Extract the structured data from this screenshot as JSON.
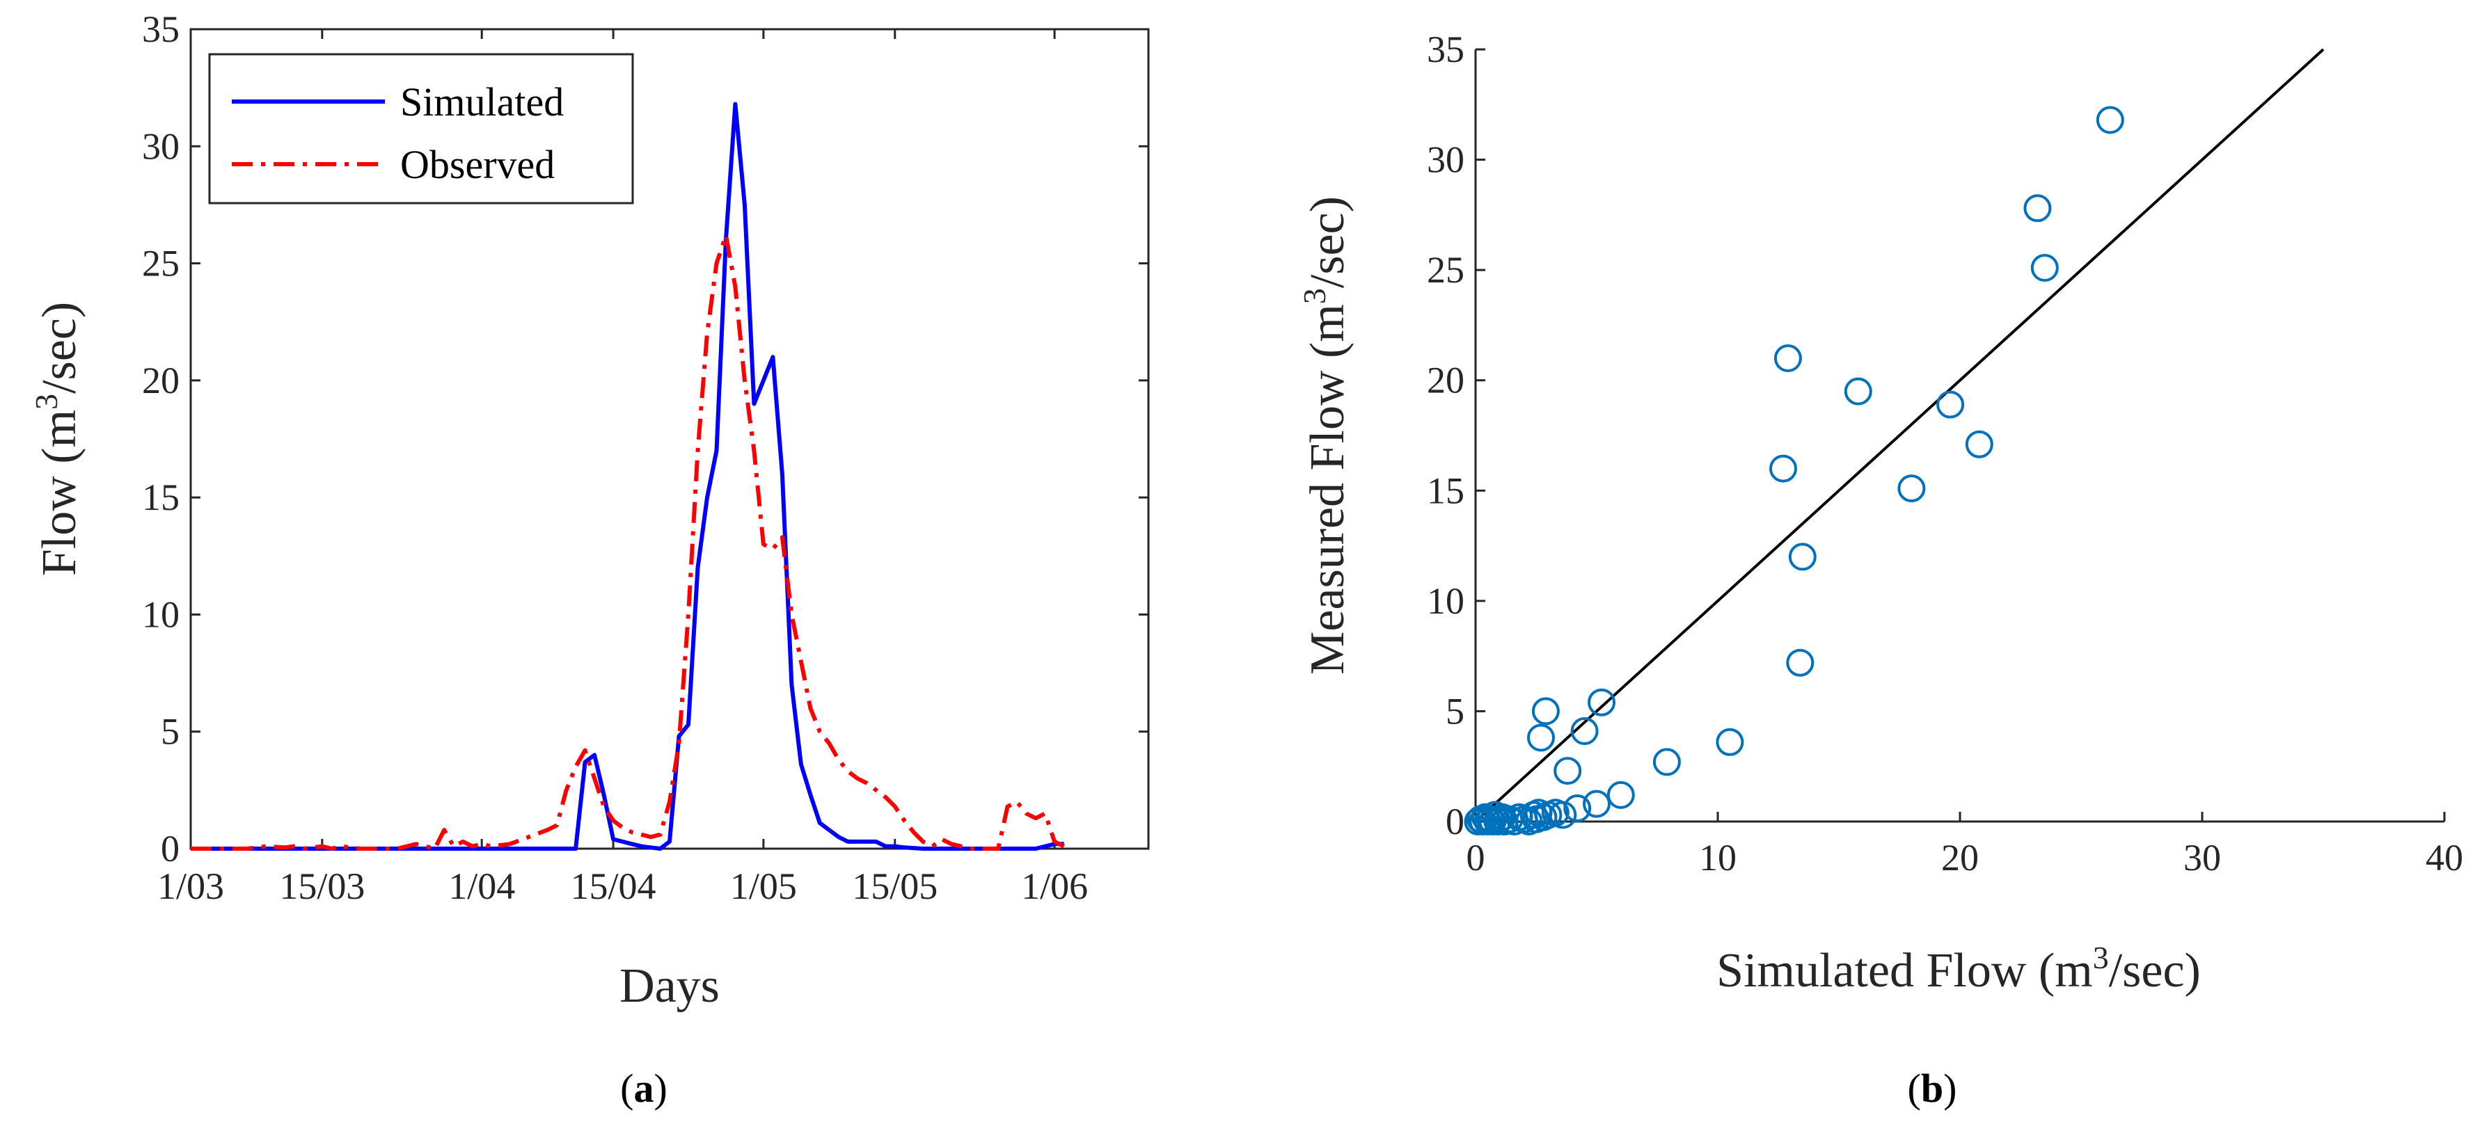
{
  "chart_data": [
    {
      "type": "line",
      "panel": "a",
      "caption_letter": "a",
      "xlabel": "Days",
      "ylabel_pre": "Flow (m",
      "ylabel_sup": "3",
      "ylabel_post": "/sec)",
      "x_unit": "day index from 1 March",
      "xlim": [
        0,
        102
      ],
      "ylim": [
        0,
        35
      ],
      "x_ticks": [
        {
          "value": 0,
          "label": "1/03"
        },
        {
          "value": 14,
          "label": "15/03"
        },
        {
          "value": 31,
          "label": "1/04"
        },
        {
          "value": 45,
          "label": "15/04"
        },
        {
          "value": 61,
          "label": "1/05"
        },
        {
          "value": 75,
          "label": "15/05"
        },
        {
          "value": 92,
          "label": "1/06"
        }
      ],
      "y_ticks": [
        0,
        5,
        10,
        15,
        20,
        25,
        30,
        35
      ],
      "legend": "top-left",
      "series": [
        {
          "name": "Simulated",
          "color": "#0000ff",
          "style": "solid",
          "x": [
            0,
            10,
            20,
            30,
            40,
            41,
            42,
            43,
            44,
            45,
            46,
            47,
            48,
            49,
            50,
            51,
            52,
            53,
            54,
            55,
            56,
            57,
            58,
            59,
            60,
            61,
            62,
            63,
            64,
            65,
            66,
            67,
            68,
            69,
            70,
            71,
            72,
            73,
            74,
            75,
            76,
            78,
            80,
            82,
            84,
            86,
            88,
            90,
            92,
            93
          ],
          "values": [
            0,
            0,
            0,
            0,
            0,
            0,
            3.7,
            4.0,
            2.3,
            0.4,
            0.3,
            0.2,
            0.1,
            0.05,
            0,
            0.3,
            4.8,
            5.3,
            12,
            15,
            17,
            26,
            31.8,
            27.5,
            19,
            20,
            21,
            16,
            7,
            3.6,
            2.3,
            1.1,
            0.8,
            0.5,
            0.3,
            0.3,
            0.3,
            0.3,
            0.1,
            0.1,
            0.05,
            0,
            0,
            0,
            0,
            0,
            0,
            0,
            0.2,
            0.2
          ]
        },
        {
          "name": "Observed",
          "color": "#ff0000",
          "style": "dash-dot",
          "x": [
            0,
            2,
            4,
            6,
            8,
            10,
            11,
            12,
            14,
            15,
            16,
            18,
            20,
            22,
            24,
            26,
            27,
            28,
            29,
            30,
            31,
            32,
            34,
            36,
            38,
            39,
            40,
            41,
            42,
            43,
            44,
            45,
            46,
            47,
            48,
            49,
            50,
            51,
            52,
            53,
            54,
            55,
            56,
            57,
            58,
            59,
            60,
            61,
            62,
            63,
            64,
            65,
            66,
            67,
            68,
            69,
            70,
            71,
            72,
            73,
            74,
            75,
            76,
            77,
            78,
            79,
            80,
            81,
            82,
            83,
            84,
            85,
            86,
            87,
            88,
            89,
            90,
            91,
            92,
            93
          ],
          "values": [
            0,
            0,
            0,
            0,
            0.1,
            0.05,
            0.1,
            0,
            0.1,
            0,
            0.1,
            0,
            0,
            0,
            0.2,
            0,
            0.8,
            0.1,
            0.3,
            0.1,
            0.2,
            0.1,
            0.2,
            0.5,
            0.8,
            1.0,
            2.5,
            3.5,
            4.2,
            3.0,
            1.8,
            1.2,
            0.9,
            0.7,
            0.6,
            0.5,
            0.6,
            2.0,
            4.5,
            10,
            17,
            22,
            25,
            26.2,
            24,
            20,
            17,
            13,
            12.8,
            13.3,
            10,
            8,
            6,
            5,
            4.5,
            3.8,
            3.3,
            3,
            2.8,
            2.5,
            2.2,
            1.8,
            1.2,
            0.7,
            0.3,
            0.1,
            0.4,
            0.2,
            0.1,
            0,
            0,
            0,
            0,
            1.8,
            2.0,
            1.5,
            1.3,
            1.5,
            0.3,
            0.1
          ]
        }
      ]
    },
    {
      "type": "scatter",
      "panel": "b",
      "caption_letter": "b",
      "xlabel_pre": "Simulated Flow (m",
      "xlabel_sup": "3",
      "xlabel_post": "/sec)",
      "ylabel_pre": "Measured Flow (m",
      "ylabel_sup": "3",
      "ylabel_post": "/sec)",
      "xlim": [
        0,
        40
      ],
      "ylim": [
        0,
        35
      ],
      "x_ticks": [
        0,
        10,
        20,
        30,
        40
      ],
      "y_ticks": [
        0,
        5,
        10,
        15,
        20,
        25,
        30,
        35
      ],
      "marker_color": "#0072bd",
      "reference_line": {
        "x": [
          0,
          35
        ],
        "y": [
          0,
          35
        ],
        "color": "#000000"
      },
      "points": [
        [
          0.1,
          0
        ],
        [
          0.2,
          0.1
        ],
        [
          0.3,
          0
        ],
        [
          0.4,
          0.2
        ],
        [
          0.5,
          0
        ],
        [
          0.6,
          0.1
        ],
        [
          0.7,
          0
        ],
        [
          0.8,
          0.3
        ],
        [
          0.9,
          0
        ],
        [
          1.0,
          0.1
        ],
        [
          1.1,
          0.2
        ],
        [
          1.2,
          0
        ],
        [
          1.4,
          0.1
        ],
        [
          1.6,
          0
        ],
        [
          1.8,
          0.2
        ],
        [
          2.0,
          0.1
        ],
        [
          2.2,
          0
        ],
        [
          2.4,
          0.3
        ],
        [
          2.5,
          0.1
        ],
        [
          2.6,
          0.4
        ],
        [
          2.8,
          0.2
        ],
        [
          3.0,
          0.3
        ],
        [
          3.3,
          0.4
        ],
        [
          3.6,
          0.3
        ],
        [
          4.2,
          0.6
        ],
        [
          5.0,
          0.8
        ],
        [
          6.0,
          1.2
        ],
        [
          7.9,
          2.7
        ],
        [
          10.5,
          3.6
        ],
        [
          3.8,
          2.3
        ],
        [
          2.7,
          3.8
        ],
        [
          2.9,
          5.0
        ],
        [
          4.5,
          4.1
        ],
        [
          5.2,
          5.4
        ],
        [
          13.4,
          7.2
        ],
        [
          13.5,
          12.0
        ],
        [
          12.7,
          16.0
        ],
        [
          12.9,
          21.0
        ],
        [
          15.8,
          19.5
        ],
        [
          18.0,
          15.1
        ],
        [
          19.6,
          18.9
        ],
        [
          20.8,
          17.1
        ],
        [
          23.2,
          27.8
        ],
        [
          23.5,
          25.1
        ],
        [
          26.2,
          31.8
        ]
      ]
    }
  ]
}
